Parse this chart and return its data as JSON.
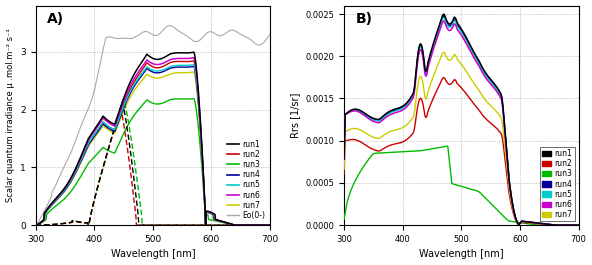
{
  "panel_A": {
    "title": "A)",
    "xlabel": "Wavelength [nm]",
    "ylabel": "Scalar quantum irradiance μ .mol.m⁻² s⁻¹",
    "xlim": [
      300,
      700
    ],
    "ylim": [
      0,
      3.8
    ],
    "yticks": [
      0,
      1,
      2,
      3
    ],
    "xticks": [
      300,
      400,
      500,
      600,
      700
    ],
    "colors": {
      "run1": "#000000",
      "run2": "#cc0000",
      "run3": "#00bb00",
      "run4": "#000099",
      "run5": "#00cccc",
      "run6": "#cc00cc",
      "run7": "#cccc00",
      "Eo": "#aaaaaa"
    }
  },
  "panel_B": {
    "title": "B)",
    "xlabel": "Wavelength [nm]",
    "ylabel": "Rrs [1/sr]",
    "xlim": [
      300,
      700
    ],
    "ylim": [
      0,
      0.0026
    ],
    "yticks": [
      0.0,
      0.0005,
      0.001,
      0.0015,
      0.002,
      0.0025
    ],
    "xticks": [
      300,
      400,
      500,
      600,
      700
    ],
    "colors": {
      "run1": "#000000",
      "run2": "#cc0000",
      "run3": "#00bb00",
      "run4": "#000099",
      "run5": "#00cccc",
      "run6": "#cc00cc",
      "run7": "#cccc00"
    }
  }
}
